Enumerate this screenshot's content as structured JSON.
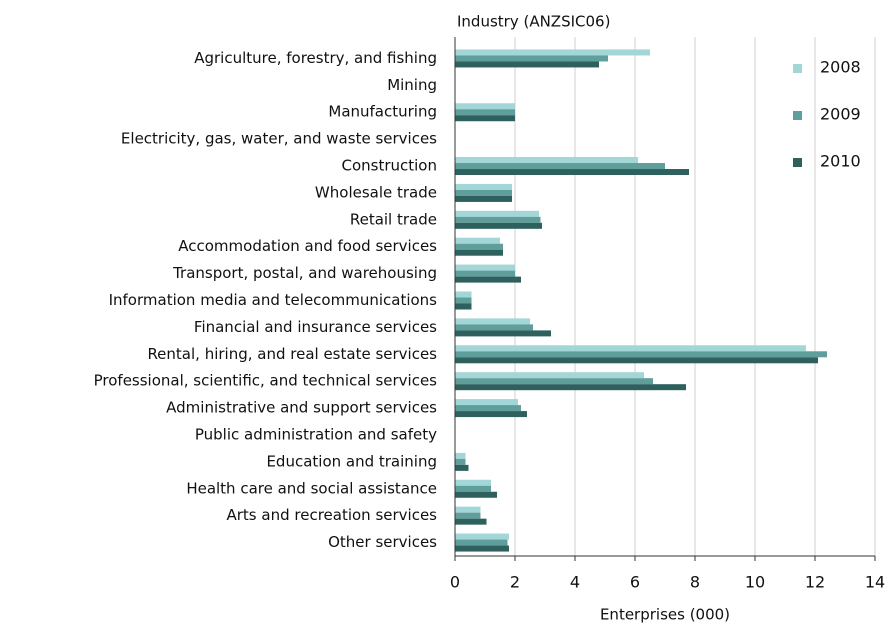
{
  "chart_data": {
    "type": "hbar",
    "title": "Industry (ANZSIC06)",
    "x_label": "Enterprises (000)",
    "categories": [
      "Agriculture, forestry, and fishing",
      "Mining",
      "Manufacturing",
      "Electricity, gas, water, and waste services",
      "Construction",
      "Wholesale trade",
      "Retail trade",
      "Accommodation and food services",
      "Transport, postal, and warehousing",
      "Information media and telecommunications",
      "Financial and insurance services",
      "Rental, hiring, and real estate services",
      "Professional, scientific, and technical services",
      "Administrative and support services",
      "Public administration and safety",
      "Education and training",
      "Health care and social assistance",
      "Arts and recreation services",
      "Other services"
    ],
    "series": [
      {
        "name": "2008",
        "color": "#a3d6d6",
        "values": [
          6.5,
          0,
          2.0,
          0,
          6.1,
          1.9,
          2.8,
          1.5,
          2.0,
          0.55,
          2.5,
          11.7,
          6.3,
          2.1,
          0,
          0.35,
          1.2,
          0.85,
          1.8
        ]
      },
      {
        "name": "2009",
        "color": "#5f9e9a",
        "values": [
          5.1,
          0,
          2.0,
          0,
          7.0,
          1.9,
          2.85,
          1.6,
          2.0,
          0.55,
          2.6,
          12.4,
          6.6,
          2.2,
          0,
          0.35,
          1.2,
          0.85,
          1.75
        ]
      },
      {
        "name": "2010",
        "color": "#2e615e",
        "values": [
          4.8,
          0,
          2.0,
          0,
          7.8,
          1.9,
          2.9,
          1.6,
          2.2,
          0.55,
          3.2,
          12.1,
          7.7,
          2.4,
          0,
          0.45,
          1.4,
          1.05,
          1.8
        ]
      }
    ],
    "xlim": [
      0,
      14
    ],
    "xticks": [
      0,
      2,
      4,
      6,
      8,
      10,
      12,
      14
    ],
    "grid": true,
    "legend": "top-right"
  }
}
